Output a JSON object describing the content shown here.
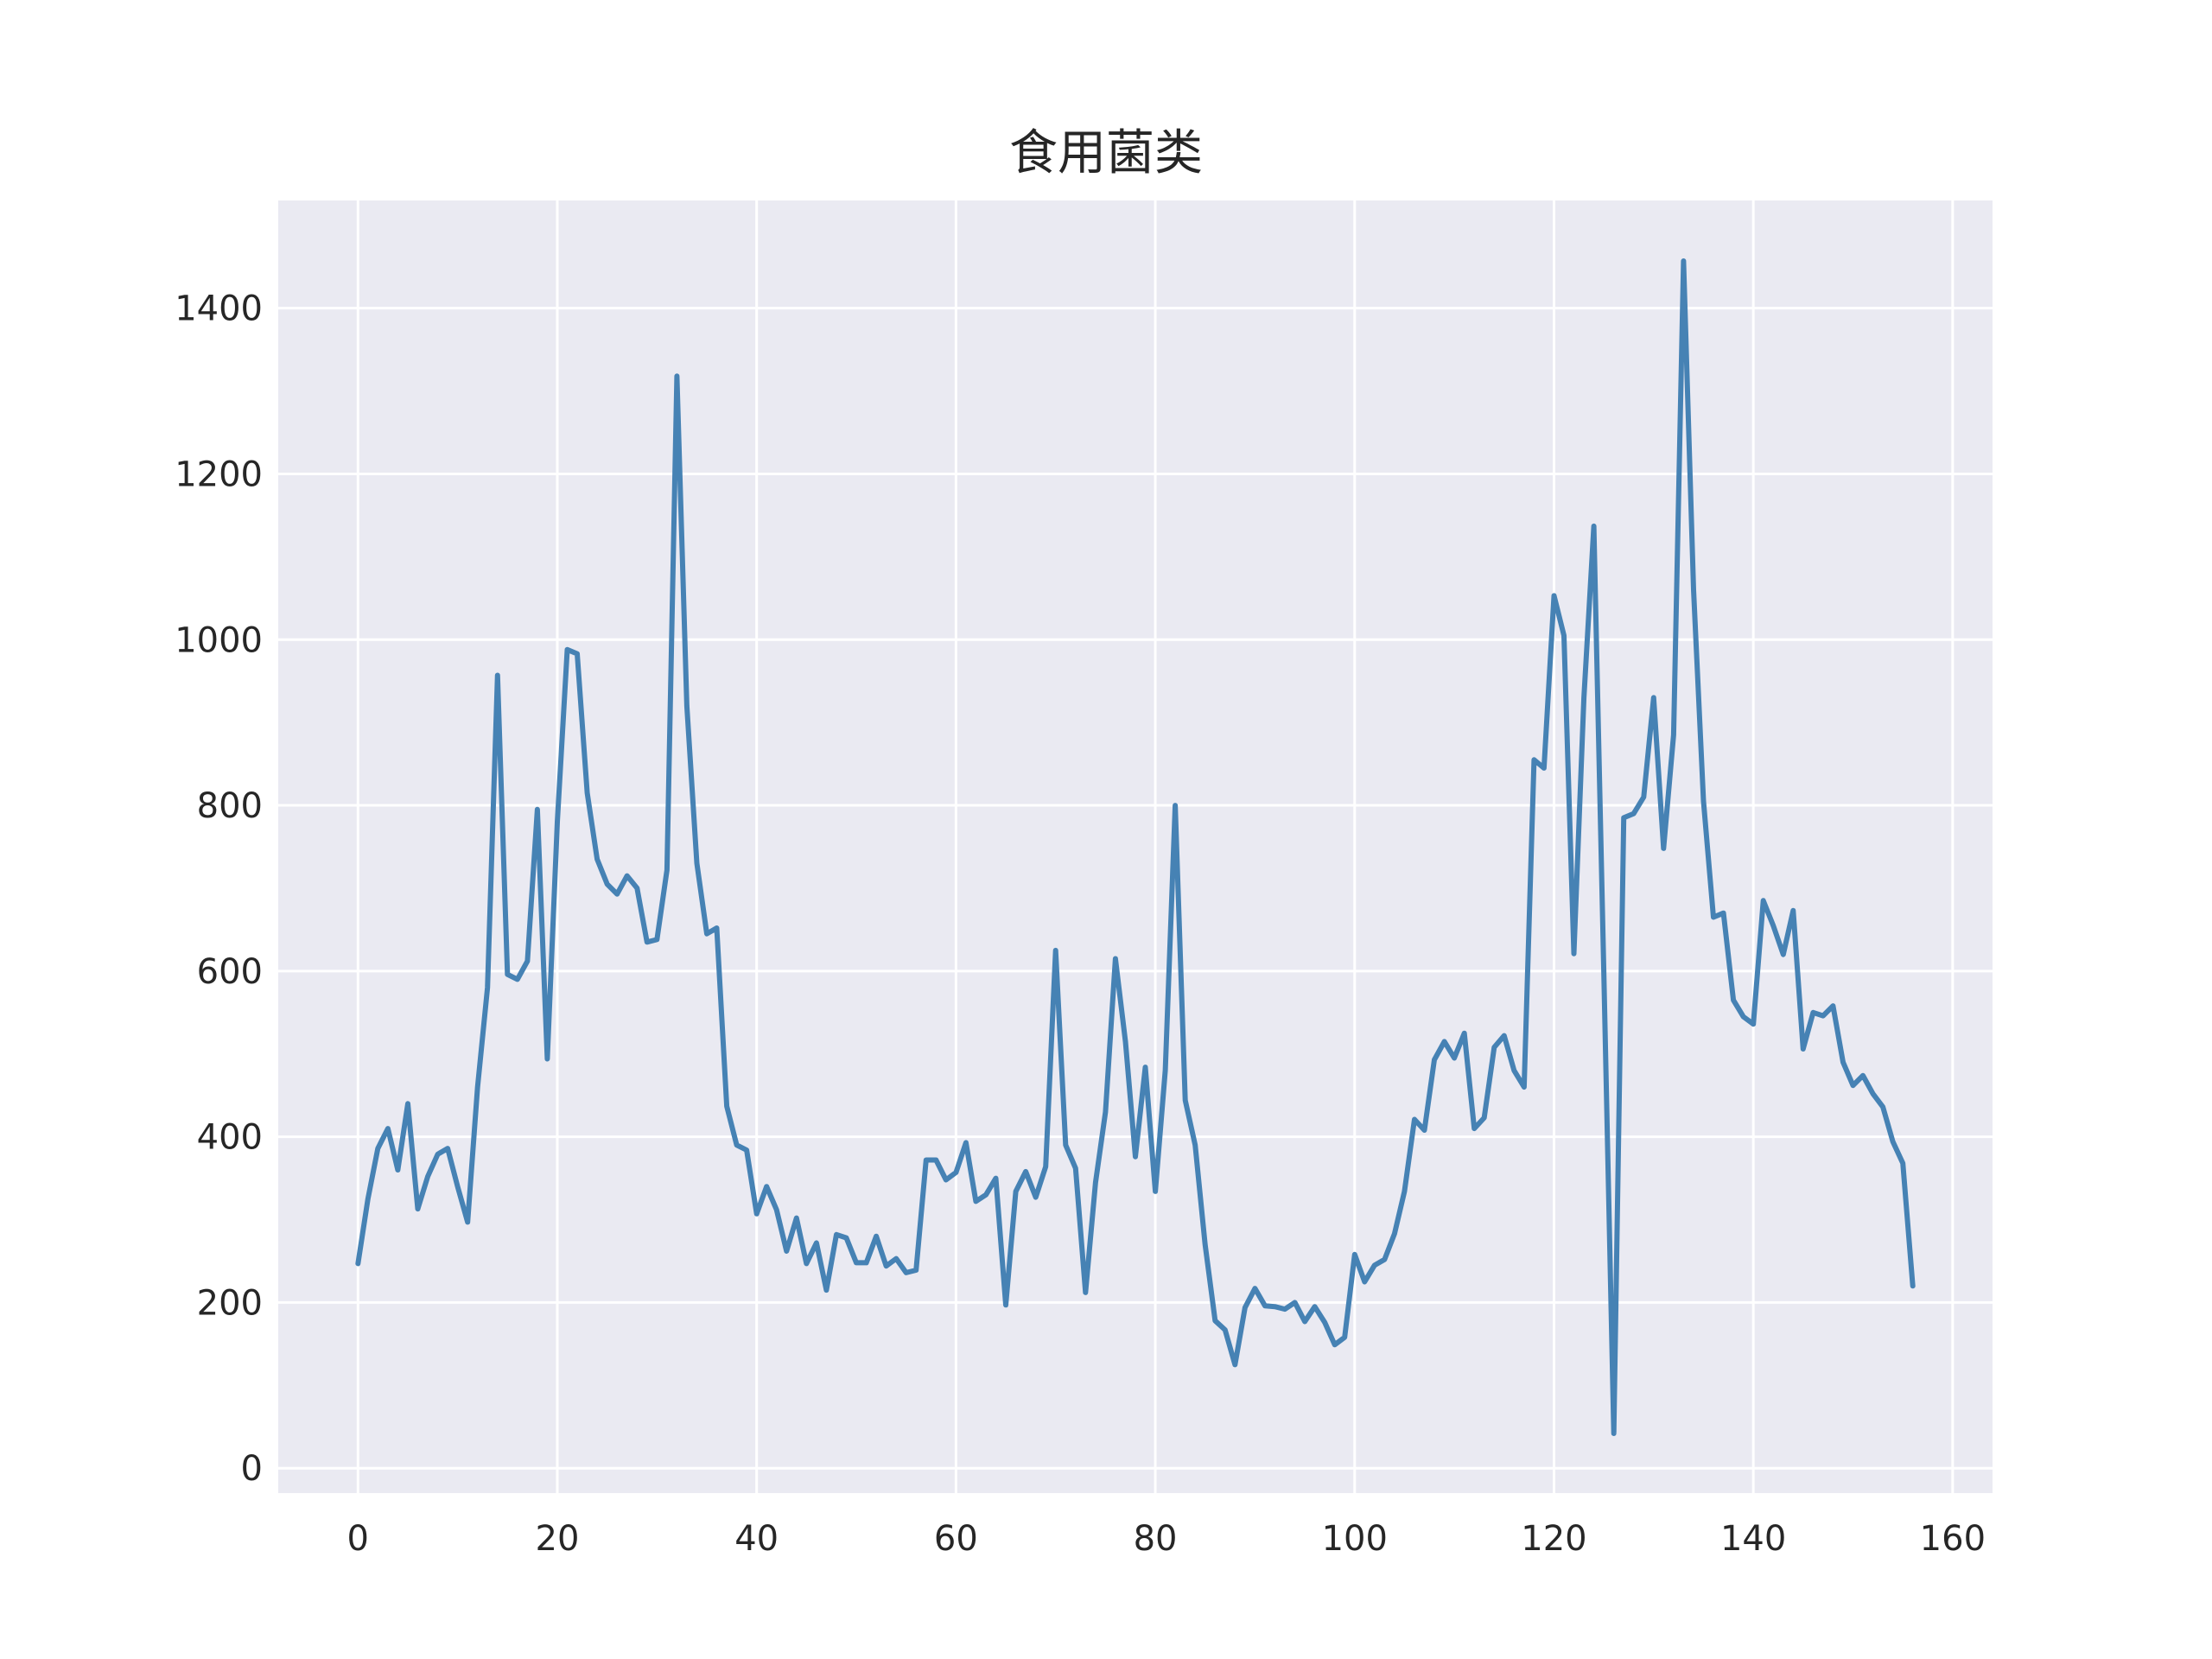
{
  "chart_data": {
    "type": "line",
    "title": "食用菌类",
    "xlabel": "",
    "ylabel": "",
    "xlim": [
      -8,
      164
    ],
    "ylim": [
      -30,
      1530
    ],
    "xticks": [
      0,
      20,
      40,
      60,
      80,
      100,
      120,
      140,
      160
    ],
    "yticks": [
      0,
      200,
      400,
      600,
      800,
      1000,
      1200,
      1400
    ],
    "grid": true,
    "legend": "none",
    "colors": {
      "background": "#eaeaf2",
      "grid": "#ffffff",
      "line": "#4682b4",
      "text": "#262626"
    },
    "series": [
      {
        "x": [
          0,
          1,
          2,
          3,
          4,
          5,
          6,
          7,
          8,
          9,
          10,
          11,
          12,
          13,
          14,
          15,
          16,
          17,
          18,
          19,
          20,
          21,
          22,
          23,
          24,
          25,
          26,
          27,
          28,
          29,
          30,
          31,
          32,
          33,
          34,
          35,
          36,
          37,
          38,
          39,
          40,
          41,
          42,
          43,
          44,
          45,
          46,
          47,
          48,
          49,
          50,
          51,
          52,
          53,
          54,
          55,
          56,
          57,
          58,
          59,
          60,
          61,
          62,
          63,
          64,
          65,
          66,
          67,
          68,
          69,
          70,
          71,
          72,
          73,
          74,
          75,
          76,
          77,
          78,
          79,
          80,
          81,
          82,
          83,
          84,
          85,
          86,
          87,
          88,
          89,
          90,
          91,
          92,
          93,
          94,
          95,
          96,
          97,
          98,
          99,
          100,
          101,
          102,
          103,
          104,
          105,
          106,
          107,
          108,
          109,
          110,
          111,
          112,
          113,
          114,
          115,
          116,
          117,
          118,
          119,
          120,
          121,
          122,
          123,
          124,
          125,
          126,
          127,
          128,
          129,
          130,
          131,
          132,
          133,
          134,
          135,
          136,
          137,
          138,
          139,
          140,
          141,
          142,
          143,
          144,
          145,
          146,
          147,
          148,
          149,
          150,
          151,
          152,
          153,
          154,
          155,
          156
        ],
        "values": [
          247,
          325,
          386,
          410,
          360,
          440,
          313,
          352,
          379,
          386,
          340,
          297,
          460,
          580,
          957,
          596,
          590,
          612,
          795,
          494,
          780,
          988,
          983,
          815,
          735,
          705,
          693,
          715,
          700,
          635,
          638,
          722,
          1318,
          920,
          730,
          645,
          652,
          437,
          390,
          384,
          307,
          340,
          312,
          262,
          302,
          247,
          272,
          215,
          282,
          278,
          248,
          248,
          280,
          244,
          253,
          236,
          239,
          372,
          372,
          348,
          357,
          393,
          322,
          330,
          350,
          197,
          334,
          358,
          327,
          364,
          625,
          390,
          362,
          212,
          345,
          430,
          615,
          515,
          376,
          484,
          334,
          480,
          800,
          444,
          390,
          270,
          178,
          167,
          125,
          194,
          217,
          196,
          195,
          192,
          200,
          177,
          195,
          176,
          149,
          158,
          258,
          225,
          245,
          252,
          283,
          334,
          421,
          408,
          493,
          515,
          495,
          525,
          410,
          423,
          508,
          522,
          480,
          460,
          855,
          845,
          1053,
          1005,
          621,
          930,
          1137,
          600,
          42,
          785,
          790,
          810,
          930,
          748,
          885,
          1457,
          1060,
          805,
          665,
          670,
          565,
          545,
          536,
          685,
          655,
          620,
          673,
          506,
          550,
          546,
          558,
          490,
          462,
          474,
          452,
          436,
          394,
          368,
          220
        ]
      }
    ]
  }
}
